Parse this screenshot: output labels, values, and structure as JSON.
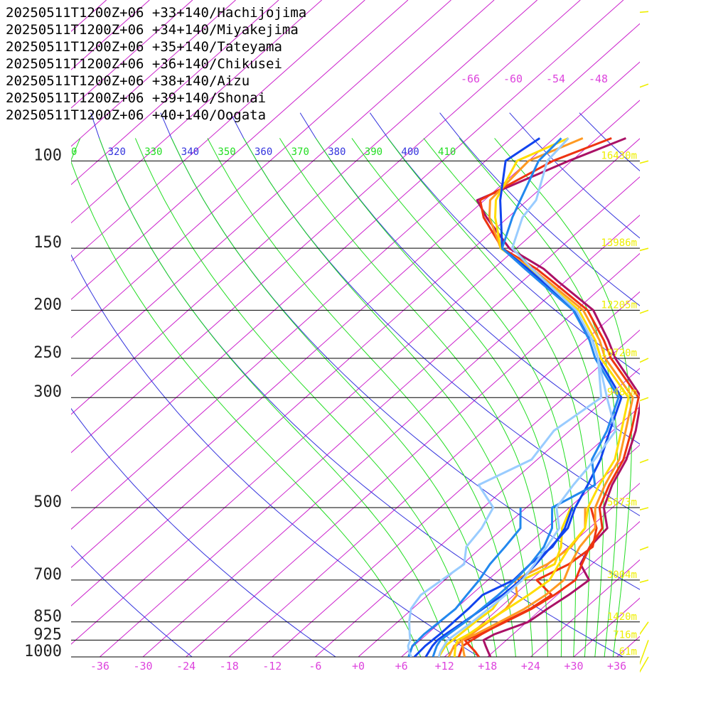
{
  "chart_data": {
    "type": "line",
    "title": "",
    "xlabel": "",
    "ylabel": "",
    "pressure_levels": [
      100,
      150,
      200,
      250,
      300,
      500,
      700,
      850,
      925,
      1000
    ],
    "level_labels": [
      "100",
      "150",
      "200",
      "250",
      "300",
      "500",
      "700",
      "850",
      "925",
      "1000"
    ],
    "height_labels": [
      "16430m",
      "13986m",
      "12205m",
      "10720m",
      "9482m",
      "5673m",
      "3004m",
      "1420m",
      "716m",
      "61m"
    ],
    "x_ticks": [
      "-36",
      "-30",
      "-24",
      "-18",
      "-12",
      "-6",
      "+0",
      "+6",
      "+12",
      "+18",
      "+24",
      "+30",
      "+36"
    ],
    "x_tick_values": [
      -36,
      -30,
      -24,
      -18,
      -12,
      -6,
      0,
      6,
      12,
      18,
      24,
      30,
      36
    ],
    "xlim": [
      -40,
      40
    ],
    "ylim": [
      1000,
      100
    ],
    "isotherm_top_labels": [
      "-66",
      "-60",
      "-54",
      "-48"
    ],
    "theta_labels": [
      "0",
      "320",
      "330",
      "340",
      "350",
      "360",
      "370",
      "380",
      "390",
      "400",
      "410"
    ],
    "colors": {
      "isotherm": "#cc22cc",
      "dry_adiabat": "#3333dd",
      "moist_adiabat": "#22dd22",
      "isobar": "#000000",
      "wind_barb": "#eeee00",
      "height_label": "#eeee00",
      "tick_label": "#dd44dd"
    },
    "series": [
      {
        "name": "20250511T1200Z+06 +33+140/Hachijojima",
        "color": "#aa1166",
        "temp_p": [
          1000,
          975,
          950,
          925,
          900,
          850,
          800,
          750,
          700,
          650,
          600,
          550,
          500,
          450,
          400,
          350,
          300,
          250,
          230,
          200,
          175,
          165,
          150,
          130,
          120,
          100,
          90
        ],
        "temp_t": [
          18.4,
          17.2,
          16.0,
          14.8,
          15.4,
          18.2,
          18.8,
          19.6,
          20.1,
          16.4,
          15.0,
          14.5,
          10.8,
          8.4,
          6.4,
          3.2,
          -1.2,
          -11.0,
          -14.8,
          -21.6,
          -31.0,
          -35.0,
          -43.0,
          -51.0,
          -55.0,
          -48.4,
          -44.0
        ],
        "dew_p": [],
        "dew_t": []
      },
      {
        "name": "20250511T1200Z+06 +34+140/Miyakejima",
        "color": "#ee3311",
        "temp_p": [
          1000,
          975,
          950,
          925,
          900,
          850,
          800,
          750,
          700,
          650,
          600,
          550,
          500,
          450,
          400,
          350,
          300,
          250,
          230,
          200,
          175,
          165,
          150,
          130,
          120,
          100,
          90
        ],
        "temp_t": [
          16.8,
          15.4,
          13.8,
          12.2,
          13.4,
          15.0,
          16.6,
          17.6,
          18.2,
          16.6,
          15.0,
          13.8,
          10.2,
          8.0,
          6.0,
          2.6,
          -1.6,
          -11.6,
          -15.4,
          -22.4,
          -31.8,
          -36.0,
          -44.0,
          -51.4,
          -54.6,
          -50.6,
          -46.0
        ],
        "dew_p": [
          1000,
          950,
          900,
          850,
          800,
          750,
          700,
          650,
          600,
          550,
          500
        ],
        "dew_t": [
          14.0,
          12.8,
          13.6,
          14.8,
          16.4,
          17.2,
          12.8,
          14.8,
          15.4,
          13.0,
          9.0
        ]
      },
      {
        "name": "20250511T1200Z+06 +35+140/Tateyama",
        "color": "#ff9922",
        "temp_p": [
          1000,
          975,
          950,
          925,
          900,
          850,
          800,
          750,
          700,
          650,
          600,
          550,
          500,
          450,
          400,
          350,
          300,
          250,
          230,
          200,
          175,
          165,
          150,
          130,
          120,
          100,
          90
        ],
        "temp_t": [
          14.8,
          13.8,
          12.8,
          11.8,
          12.8,
          14.2,
          15.6,
          16.4,
          16.6,
          15.0,
          13.6,
          12.8,
          9.6,
          7.4,
          5.4,
          1.8,
          -2.4,
          -12.4,
          -16.0,
          -23.0,
          -32.4,
          -36.6,
          -44.2,
          -50.6,
          -53.2,
          -54.0,
          -50.0
        ],
        "dew_p": [
          1000,
          950,
          900,
          850,
          800,
          750,
          700,
          650,
          600,
          550,
          500
        ],
        "dew_t": [
          12.6,
          11.6,
          12.2,
          12.6,
          13.0,
          12.4,
          9.8,
          11.8,
          12.4,
          11.4,
          8.2
        ]
      },
      {
        "name": "20250511T1200Z+06 +36+140/Chikusei",
        "color": "#ffdd00",
        "temp_p": [
          1000,
          975,
          950,
          925,
          900,
          850,
          800,
          750,
          700,
          650,
          600,
          550,
          500,
          450,
          400,
          350,
          300,
          250,
          230,
          200,
          175,
          165,
          150,
          130,
          120,
          100,
          90
        ],
        "temp_t": [
          13.4,
          12.6,
          11.8,
          11.2,
          11.8,
          12.4,
          13.2,
          14.0,
          14.6,
          13.4,
          12.2,
          11.4,
          8.6,
          6.6,
          4.8,
          1.2,
          -3.0,
          -13.0,
          -16.6,
          -23.6,
          -32.8,
          -37.0,
          -44.2,
          -49.8,
          -52.4,
          -55.6,
          -52.0
        ],
        "dew_p": [
          1000,
          950,
          900,
          850,
          800,
          750,
          700,
          650,
          600,
          550,
          500
        ],
        "dew_t": [
          11.2,
          10.4,
          10.6,
          10.8,
          11.2,
          10.4,
          10.8,
          12.8,
          11.0,
          8.2,
          6.2
        ]
      },
      {
        "name": "20250511T1200Z+06 +38+140/Aizu",
        "color": "#1144ee",
        "temp_p": [
          1000,
          975,
          950,
          925,
          900,
          850,
          800,
          750,
          700,
          650,
          600,
          550,
          500,
          450,
          400,
          350,
          300,
          250,
          230,
          200,
          175,
          165,
          150,
          130,
          120,
          100,
          90
        ],
        "temp_t": [
          9.4,
          9.0,
          8.6,
          8.4,
          8.6,
          9.2,
          9.8,
          10.4,
          10.6,
          10.2,
          9.6,
          9.0,
          6.8,
          5.0,
          2.8,
          -0.4,
          -4.0,
          -13.4,
          -17.0,
          -24.2,
          -33.2,
          -37.2,
          -44.0,
          -49.0,
          -51.8,
          -57.2,
          -56.0
        ],
        "dew_p": [
          1000,
          950,
          900,
          850,
          800,
          750,
          700,
          650,
          600,
          550,
          500
        ],
        "dew_t": [
          7.8,
          7.6,
          7.8,
          7.8,
          7.8,
          7.6,
          9.6,
          9.4,
          9.8,
          8.6,
          6.4
        ]
      },
      {
        "name": "20250511T1200Z+06 +39+140/Shonai",
        "color": "#2288ee",
        "temp_p": [
          1000,
          975,
          950,
          925,
          900,
          850,
          800,
          750,
          700,
          650,
          600,
          550,
          500,
          450,
          400,
          350,
          300,
          250,
          230,
          200,
          175,
          165,
          150,
          130,
          120,
          100,
          90
        ],
        "temp_t": [
          10.4,
          9.8,
          9.2,
          8.8,
          9.0,
          9.4,
          9.6,
          9.8,
          9.8,
          9.4,
          8.6,
          6.8,
          3.6,
          6.0,
          1.6,
          -0.8,
          -4.4,
          -13.8,
          -17.4,
          -24.4,
          -33.6,
          -37.6,
          -44.0,
          -47.4,
          -49.0,
          -52.6,
          -53.0
        ],
        "dew_p": [
          1000,
          950,
          900,
          850,
          800,
          750,
          700,
          650,
          600,
          550,
          500
        ],
        "dew_t": [
          7.0,
          5.8,
          5.6,
          5.8,
          6.0,
          5.4,
          4.8,
          3.8,
          3.2,
          2.4,
          -0.8
        ]
      },
      {
        "name": "20250511T1200Z+06 +40+140/Oogata",
        "color": "#99ccff",
        "temp_p": [
          1000,
          975,
          950,
          925,
          900,
          850,
          800,
          750,
          700,
          650,
          600,
          550,
          500,
          450,
          400,
          350,
          300,
          250,
          230,
          200,
          175,
          165,
          150,
          130,
          120,
          100,
          90
        ],
        "temp_t": [
          11.2,
          10.6,
          10.2,
          9.8,
          10.0,
          10.4,
          10.6,
          10.8,
          10.8,
          10.0,
          9.0,
          7.8,
          4.2,
          3.0,
          2.0,
          0.4,
          -6.0,
          -13.4,
          -17.0,
          -24.0,
          -32.8,
          -36.6,
          -42.6,
          -46.0,
          -46.8,
          -51.4,
          -52.0
        ],
        "dew_p": [
          1000,
          975,
          950,
          925,
          900,
          850,
          800,
          750,
          700,
          650,
          600,
          550,
          500,
          450,
          400,
          350,
          300,
          250
        ],
        "dew_t": [
          7.4,
          6.2,
          5.2,
          4.6,
          3.6,
          1.6,
          -0.2,
          -1.0,
          -0.4,
          0.2,
          -2.2,
          -3.0,
          -4.6,
          -10.2,
          -6.8,
          -8.2,
          -6.8,
          -13.4
        ]
      }
    ],
    "wind_barbs": [
      {
        "p": 1000,
        "dir": 210,
        "speed": 5
      },
      {
        "p": 925,
        "dir": 200,
        "speed": 10
      },
      {
        "p": 850,
        "dir": 215,
        "speed": 10
      },
      {
        "p": 700,
        "dir": 255,
        "speed": 35
      },
      {
        "p": 600,
        "dir": 250,
        "speed": 25
      },
      {
        "p": 500,
        "dir": 255,
        "speed": 45
      },
      {
        "p": 400,
        "dir": 250,
        "speed": 30
      },
      {
        "p": 300,
        "dir": 250,
        "speed": 35
      },
      {
        "p": 250,
        "dir": 245,
        "speed": 30
      },
      {
        "p": 200,
        "dir": 250,
        "speed": 45
      },
      {
        "p": 150,
        "dir": 255,
        "speed": 35
      },
      {
        "p": 100,
        "dir": 255,
        "speed": 25
      },
      {
        "p": 70,
        "dir": 250,
        "speed": 40
      },
      {
        "p": 50,
        "dir": 265,
        "speed": 20
      }
    ]
  }
}
